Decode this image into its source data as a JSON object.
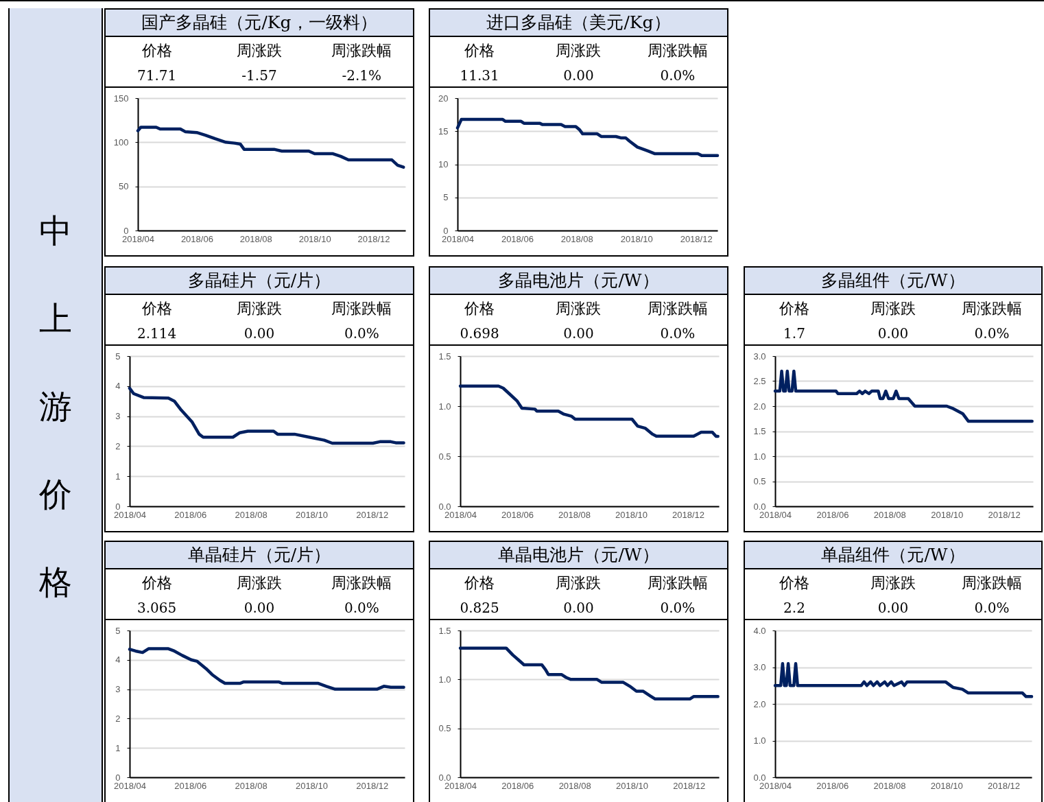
{
  "chart_data": [
    {
      "type": "other",
      "title": "中上游价格"
    },
    {
      "type": "line",
      "title": "国产多晶硅（元/Kg，一级料）",
      "annotations": [
        "价格",
        "周涨跌",
        "周涨跌幅",
        "71.71",
        "-1.57",
        "-2.1%"
      ],
      "grid": "y",
      "xlim": [
        "2018-04-01",
        "2019-01-03"
      ],
      "xticks": [
        {
          "value": "2018-04-01",
          "label": "2018/04"
        },
        {
          "value": "2018-06-01",
          "label": "2018/06"
        },
        {
          "value": "2018-08-01",
          "label": "2018/08"
        },
        {
          "value": "2018-10-01",
          "label": "2018/10"
        },
        {
          "value": "2018-12-01",
          "label": "2018/12"
        }
      ],
      "ylim": [
        0,
        150
      ],
      "yticks": [
        0,
        50,
        100,
        150
      ],
      "x": [
        "2018-04-01",
        "2018-04-04",
        "2018-04-20",
        "2018-04-24",
        "2018-05-15",
        "2018-05-20",
        "2018-06-01",
        "2018-06-10",
        "2018-06-20",
        "2018-07-01",
        "2018-07-10",
        "2018-07-16",
        "2018-07-20",
        "2018-08-20",
        "2018-08-28",
        "2018-09-25",
        "2018-10-01",
        "2018-10-20",
        "2018-10-28",
        "2018-11-05",
        "2018-12-20",
        "2018-12-26",
        "2019-01-01"
      ],
      "series": [
        {
          "color": "#002060",
          "values": [
            113,
            117,
            117,
            115,
            115,
            112,
            111,
            108,
            104,
            100,
            99,
            98,
            92,
            92,
            90,
            90,
            87,
            87,
            84,
            80,
            80,
            74,
            71.71
          ]
        }
      ]
    },
    {
      "type": "line",
      "title": "进口多晶硅（美元/Kg）",
      "annotations": [
        "价格",
        "周涨跌",
        "周涨跌幅",
        "11.31",
        "0.00",
        "0.0%"
      ],
      "grid": "y",
      "xlim": [
        "2018-04-01",
        "2018-12-23"
      ],
      "xticks": [
        {
          "value": "2018-04-01",
          "label": "2018/04"
        },
        {
          "value": "2018-06-01",
          "label": "2018/06"
        },
        {
          "value": "2018-08-01",
          "label": "2018/08"
        },
        {
          "value": "2018-10-01",
          "label": "2018/10"
        },
        {
          "value": "2018-12-01",
          "label": "2018/12"
        }
      ],
      "ylim": [
        0,
        20
      ],
      "yticks": [
        0,
        5,
        10,
        15,
        20
      ],
      "x": [
        "2018-04-01",
        "2018-04-05",
        "2018-05-17",
        "2018-05-20",
        "2018-06-05",
        "2018-06-08",
        "2018-06-24",
        "2018-06-27",
        "2018-07-16",
        "2018-07-20",
        "2018-07-31",
        "2018-08-04",
        "2018-08-07",
        "2018-08-22",
        "2018-08-26",
        "2018-09-10",
        "2018-09-15",
        "2018-09-20",
        "2018-09-24",
        "2018-10-02",
        "2018-10-13",
        "2018-10-20",
        "2018-12-03",
        "2018-12-07",
        "2018-12-23"
      ],
      "series": [
        {
          "color": "#002060",
          "values": [
            15.5,
            16.8,
            16.8,
            16.5,
            16.5,
            16.2,
            16.2,
            16.0,
            16.0,
            15.7,
            15.7,
            15.2,
            14.6,
            14.6,
            14.2,
            14.2,
            14.0,
            14.0,
            13.5,
            12.6,
            12.0,
            11.6,
            11.6,
            11.31,
            11.31
          ]
        }
      ]
    },
    {
      "type": "line",
      "title": "多晶硅片（元/片）",
      "annotations": [
        "价格",
        "周涨跌",
        "周涨跌幅",
        "2.114",
        "0.00",
        "0.0%"
      ],
      "grid": "y",
      "xlim": [
        "2018-04-01",
        "2019-01-03"
      ],
      "xticks": [
        {
          "value": "2018-04-01",
          "label": "2018/04"
        },
        {
          "value": "2018-06-01",
          "label": "2018/06"
        },
        {
          "value": "2018-08-01",
          "label": "2018/08"
        },
        {
          "value": "2018-10-01",
          "label": "2018/10"
        },
        {
          "value": "2018-12-01",
          "label": "2018/12"
        }
      ],
      "ylim": [
        0,
        5
      ],
      "yticks": [
        0,
        1,
        2,
        3,
        4,
        5
      ],
      "x": [
        "2018-04-01",
        "2018-04-05",
        "2018-04-15",
        "2018-05-10",
        "2018-05-16",
        "2018-05-23",
        "2018-06-03",
        "2018-06-10",
        "2018-06-14",
        "2018-07-14",
        "2018-07-21",
        "2018-07-29",
        "2018-08-24",
        "2018-08-28",
        "2018-09-14",
        "2018-09-29",
        "2018-10-14",
        "2018-10-22",
        "2018-12-02",
        "2018-12-09",
        "2018-12-20",
        "2018-12-25",
        "2019-01-02"
      ],
      "series": [
        {
          "color": "#002060",
          "values": [
            3.93,
            3.75,
            3.62,
            3.6,
            3.5,
            3.2,
            2.8,
            2.4,
            2.3,
            2.3,
            2.45,
            2.5,
            2.5,
            2.4,
            2.4,
            2.3,
            2.2,
            2.1,
            2.1,
            2.15,
            2.15,
            2.114,
            2.114
          ]
        }
      ]
    },
    {
      "type": "line",
      "title": "多晶电池片（元/W）",
      "annotations": [
        "价格",
        "周涨跌",
        "周涨跌幅",
        "0.698",
        "0.00",
        "0.0%"
      ],
      "grid": "y",
      "xlim": [
        "2018-04-01",
        "2019-01-03"
      ],
      "xticks": [
        {
          "value": "2018-04-01",
          "label": "2018/04"
        },
        {
          "value": "2018-06-01",
          "label": "2018/06"
        },
        {
          "value": "2018-08-01",
          "label": "2018/08"
        },
        {
          "value": "2018-10-01",
          "label": "2018/10"
        },
        {
          "value": "2018-12-01",
          "label": "2018/12"
        }
      ],
      "ylim": [
        0,
        1.5
      ],
      "yticks": [
        {
          "value": 0,
          "label": "0.0"
        },
        {
          "value": 0.5,
          "label": "0.5"
        },
        {
          "value": 1,
          "label": "1.0"
        },
        {
          "value": 1.5,
          "label": "1.5"
        }
      ],
      "x": [
        "2018-04-01",
        "2018-05-12",
        "2018-05-17",
        "2018-05-24",
        "2018-06-01",
        "2018-06-06",
        "2018-06-20",
        "2018-06-22",
        "2018-07-15",
        "2018-07-21",
        "2018-07-29",
        "2018-08-02",
        "2018-10-02",
        "2018-10-08",
        "2018-10-16",
        "2018-10-24",
        "2018-10-28",
        "2018-12-07",
        "2018-12-15",
        "2018-12-27",
        "2018-12-31",
        "2019-01-02"
      ],
      "series": [
        {
          "color": "#002060",
          "values": [
            1.2,
            1.2,
            1.18,
            1.12,
            1.05,
            0.98,
            0.97,
            0.95,
            0.95,
            0.92,
            0.9,
            0.87,
            0.87,
            0.8,
            0.78,
            0.72,
            0.7,
            0.7,
            0.74,
            0.74,
            0.698,
            0.698
          ]
        }
      ]
    },
    {
      "type": "line",
      "title": "多晶组件（元/W）",
      "annotations": [
        "价格",
        "周涨跌",
        "周涨跌幅",
        "1.7",
        "0.00",
        "0.0%"
      ],
      "grid": "y",
      "xlim": [
        "2018-04-01",
        "2019-01-01"
      ],
      "xticks": [
        {
          "value": "2018-04-01",
          "label": "2018/04"
        },
        {
          "value": "2018-06-01",
          "label": "2018/06"
        },
        {
          "value": "2018-08-01",
          "label": "2018/08"
        },
        {
          "value": "2018-10-01",
          "label": "2018/10"
        },
        {
          "value": "2018-12-01",
          "label": "2018/12"
        }
      ],
      "ylim": [
        0,
        3
      ],
      "yticks": [
        {
          "value": 0,
          "label": "0.0"
        },
        {
          "value": 0.5,
          "label": "0.5"
        },
        {
          "value": 1,
          "label": "1.0"
        },
        {
          "value": 1.5,
          "label": "1.5"
        },
        {
          "value": 2,
          "label": "2.0"
        },
        {
          "value": 2.5,
          "label": "2.5"
        },
        {
          "value": 3,
          "label": "3.0"
        }
      ],
      "x": [
        "2018-04-01",
        "2018-04-06",
        "2018-04-08",
        "2018-04-10",
        "2018-04-12",
        "2018-04-14",
        "2018-04-16",
        "2018-04-19",
        "2018-04-21",
        "2018-04-23",
        "2018-06-05",
        "2018-06-07",
        "2018-06-27",
        "2018-06-30",
        "2018-07-03",
        "2018-07-06",
        "2018-07-10",
        "2018-07-13",
        "2018-07-20",
        "2018-07-22",
        "2018-07-25",
        "2018-07-28",
        "2018-07-31",
        "2018-08-05",
        "2018-08-08",
        "2018-08-11",
        "2018-08-21",
        "2018-08-28",
        "2018-10-01",
        "2018-10-08",
        "2018-10-18",
        "2018-10-24",
        "2018-12-31"
      ],
      "series": [
        {
          "color": "#002060",
          "values": [
            2.3,
            2.3,
            2.7,
            2.3,
            2.3,
            2.7,
            2.3,
            2.3,
            2.7,
            2.3,
            2.3,
            2.25,
            2.25,
            2.3,
            2.25,
            2.3,
            2.25,
            2.3,
            2.3,
            2.15,
            2.15,
            2.3,
            2.15,
            2.15,
            2.3,
            2.15,
            2.15,
            2.0,
            2.0,
            1.95,
            1.85,
            1.7,
            1.7
          ]
        }
      ]
    },
    {
      "type": "line",
      "title": "单晶硅片（元/片）",
      "annotations": [
        "价格",
        "周涨跌",
        "周涨跌幅",
        "3.065",
        "0.00",
        "0.0%"
      ],
      "grid": "y",
      "xlim": [
        "2018-04-01",
        "2019-01-03"
      ],
      "xticks": [
        {
          "value": "2018-04-01",
          "label": "2018/04"
        },
        {
          "value": "2018-06-01",
          "label": "2018/06"
        },
        {
          "value": "2018-08-01",
          "label": "2018/08"
        },
        {
          "value": "2018-10-01",
          "label": "2018/10"
        },
        {
          "value": "2018-12-01",
          "label": "2018/12"
        }
      ],
      "ylim": [
        0,
        5
      ],
      "yticks": [
        0,
        1,
        2,
        3,
        4,
        5
      ],
      "x": [
        "2018-04-01",
        "2018-04-07",
        "2018-04-14",
        "2018-04-20",
        "2018-05-10",
        "2018-05-16",
        "2018-05-24",
        "2018-06-02",
        "2018-06-08",
        "2018-06-17",
        "2018-06-23",
        "2018-07-01",
        "2018-07-06",
        "2018-07-21",
        "2018-07-25",
        "2018-08-29",
        "2018-09-02",
        "2018-10-08",
        "2018-10-16",
        "2018-10-25",
        "2018-12-06",
        "2018-12-13",
        "2018-12-20",
        "2019-01-02"
      ],
      "series": [
        {
          "color": "#002060",
          "values": [
            4.36,
            4.3,
            4.25,
            4.38,
            4.38,
            4.3,
            4.15,
            4.0,
            3.95,
            3.7,
            3.5,
            3.3,
            3.2,
            3.2,
            3.25,
            3.25,
            3.2,
            3.2,
            3.1,
            3.0,
            3.0,
            3.1,
            3.065,
            3.065
          ]
        }
      ]
    },
    {
      "type": "line",
      "title": "单晶电池片（元/W）",
      "annotations": [
        "价格",
        "周涨跌",
        "周涨跌幅",
        "0.825",
        "0.00",
        "0.0%"
      ],
      "grid": "y",
      "xlim": [
        "2018-04-01",
        "2019-01-02"
      ],
      "xticks": [
        {
          "value": "2018-04-01",
          "label": "2018/04"
        },
        {
          "value": "2018-06-01",
          "label": "2018/06"
        },
        {
          "value": "2018-08-01",
          "label": "2018/08"
        },
        {
          "value": "2018-10-01",
          "label": "2018/10"
        },
        {
          "value": "2018-12-01",
          "label": "2018/12"
        }
      ],
      "ylim": [
        0,
        1.5
      ],
      "yticks": [
        {
          "value": 0,
          "label": "0.0"
        },
        {
          "value": 0.5,
          "label": "0.5"
        },
        {
          "value": 1,
          "label": "1.0"
        },
        {
          "value": 1.5,
          "label": "1.5"
        }
      ],
      "x": [
        "2018-04-01",
        "2018-05-20",
        "2018-05-27",
        "2018-06-02",
        "2018-06-08",
        "2018-06-27",
        "2018-07-01",
        "2018-07-04",
        "2018-07-18",
        "2018-07-23",
        "2018-07-28",
        "2018-08-25",
        "2018-08-30",
        "2018-09-22",
        "2018-09-29",
        "2018-10-06",
        "2018-10-13",
        "2018-10-21",
        "2018-10-26",
        "2018-12-02",
        "2018-12-06",
        "2019-01-01"
      ],
      "series": [
        {
          "color": "#002060",
          "values": [
            1.32,
            1.32,
            1.25,
            1.2,
            1.15,
            1.15,
            1.1,
            1.05,
            1.05,
            1.02,
            1.0,
            1.0,
            0.97,
            0.97,
            0.93,
            0.88,
            0.88,
            0.83,
            0.8,
            0.8,
            0.825,
            0.825
          ]
        }
      ]
    },
    {
      "type": "line",
      "title": "单晶组件（元/W）",
      "annotations": [
        "价格",
        "周涨跌",
        "周涨跌幅",
        "2.2",
        "0.00",
        "0.0%"
      ],
      "grid": "y",
      "xlim": [
        "2018-04-01",
        "2018-12-31"
      ],
      "xticks": [
        {
          "value": "2018-04-01",
          "label": "2018/04"
        },
        {
          "value": "2018-06-01",
          "label": "2018/06"
        },
        {
          "value": "2018-08-01",
          "label": "2018/08"
        },
        {
          "value": "2018-10-01",
          "label": "2018/10"
        },
        {
          "value": "2018-12-01",
          "label": "2018/12"
        }
      ],
      "ylim": [
        0,
        4
      ],
      "yticks": [
        {
          "value": 0,
          "label": "0.0"
        },
        {
          "value": 1,
          "label": "1.0"
        },
        {
          "value": 2,
          "label": "2.0"
        },
        {
          "value": 3,
          "label": "3.0"
        },
        {
          "value": 4,
          "label": "4.0"
        }
      ],
      "x": [
        "2018-04-01",
        "2018-04-07",
        "2018-04-09",
        "2018-04-11",
        "2018-04-13",
        "2018-04-15",
        "2018-04-17",
        "2018-04-21",
        "2018-04-23",
        "2018-04-25",
        "2018-07-02",
        "2018-07-05",
        "2018-07-08",
        "2018-07-12",
        "2018-07-15",
        "2018-07-19",
        "2018-07-22",
        "2018-07-27",
        "2018-07-30",
        "2018-08-03",
        "2018-08-06",
        "2018-08-14",
        "2018-08-17",
        "2018-08-20",
        "2018-09-30",
        "2018-10-08",
        "2018-10-18",
        "2018-10-24",
        "2018-12-21",
        "2018-12-25",
        "2018-12-31"
      ],
      "series": [
        {
          "color": "#002060",
          "values": [
            2.5,
            2.5,
            3.1,
            2.5,
            2.5,
            3.1,
            2.5,
            2.5,
            3.1,
            2.5,
            2.5,
            2.6,
            2.5,
            2.6,
            2.5,
            2.6,
            2.5,
            2.6,
            2.5,
            2.6,
            2.5,
            2.6,
            2.5,
            2.6,
            2.6,
            2.45,
            2.4,
            2.3,
            2.3,
            2.2,
            2.2
          ]
        }
      ]
    }
  ]
}
